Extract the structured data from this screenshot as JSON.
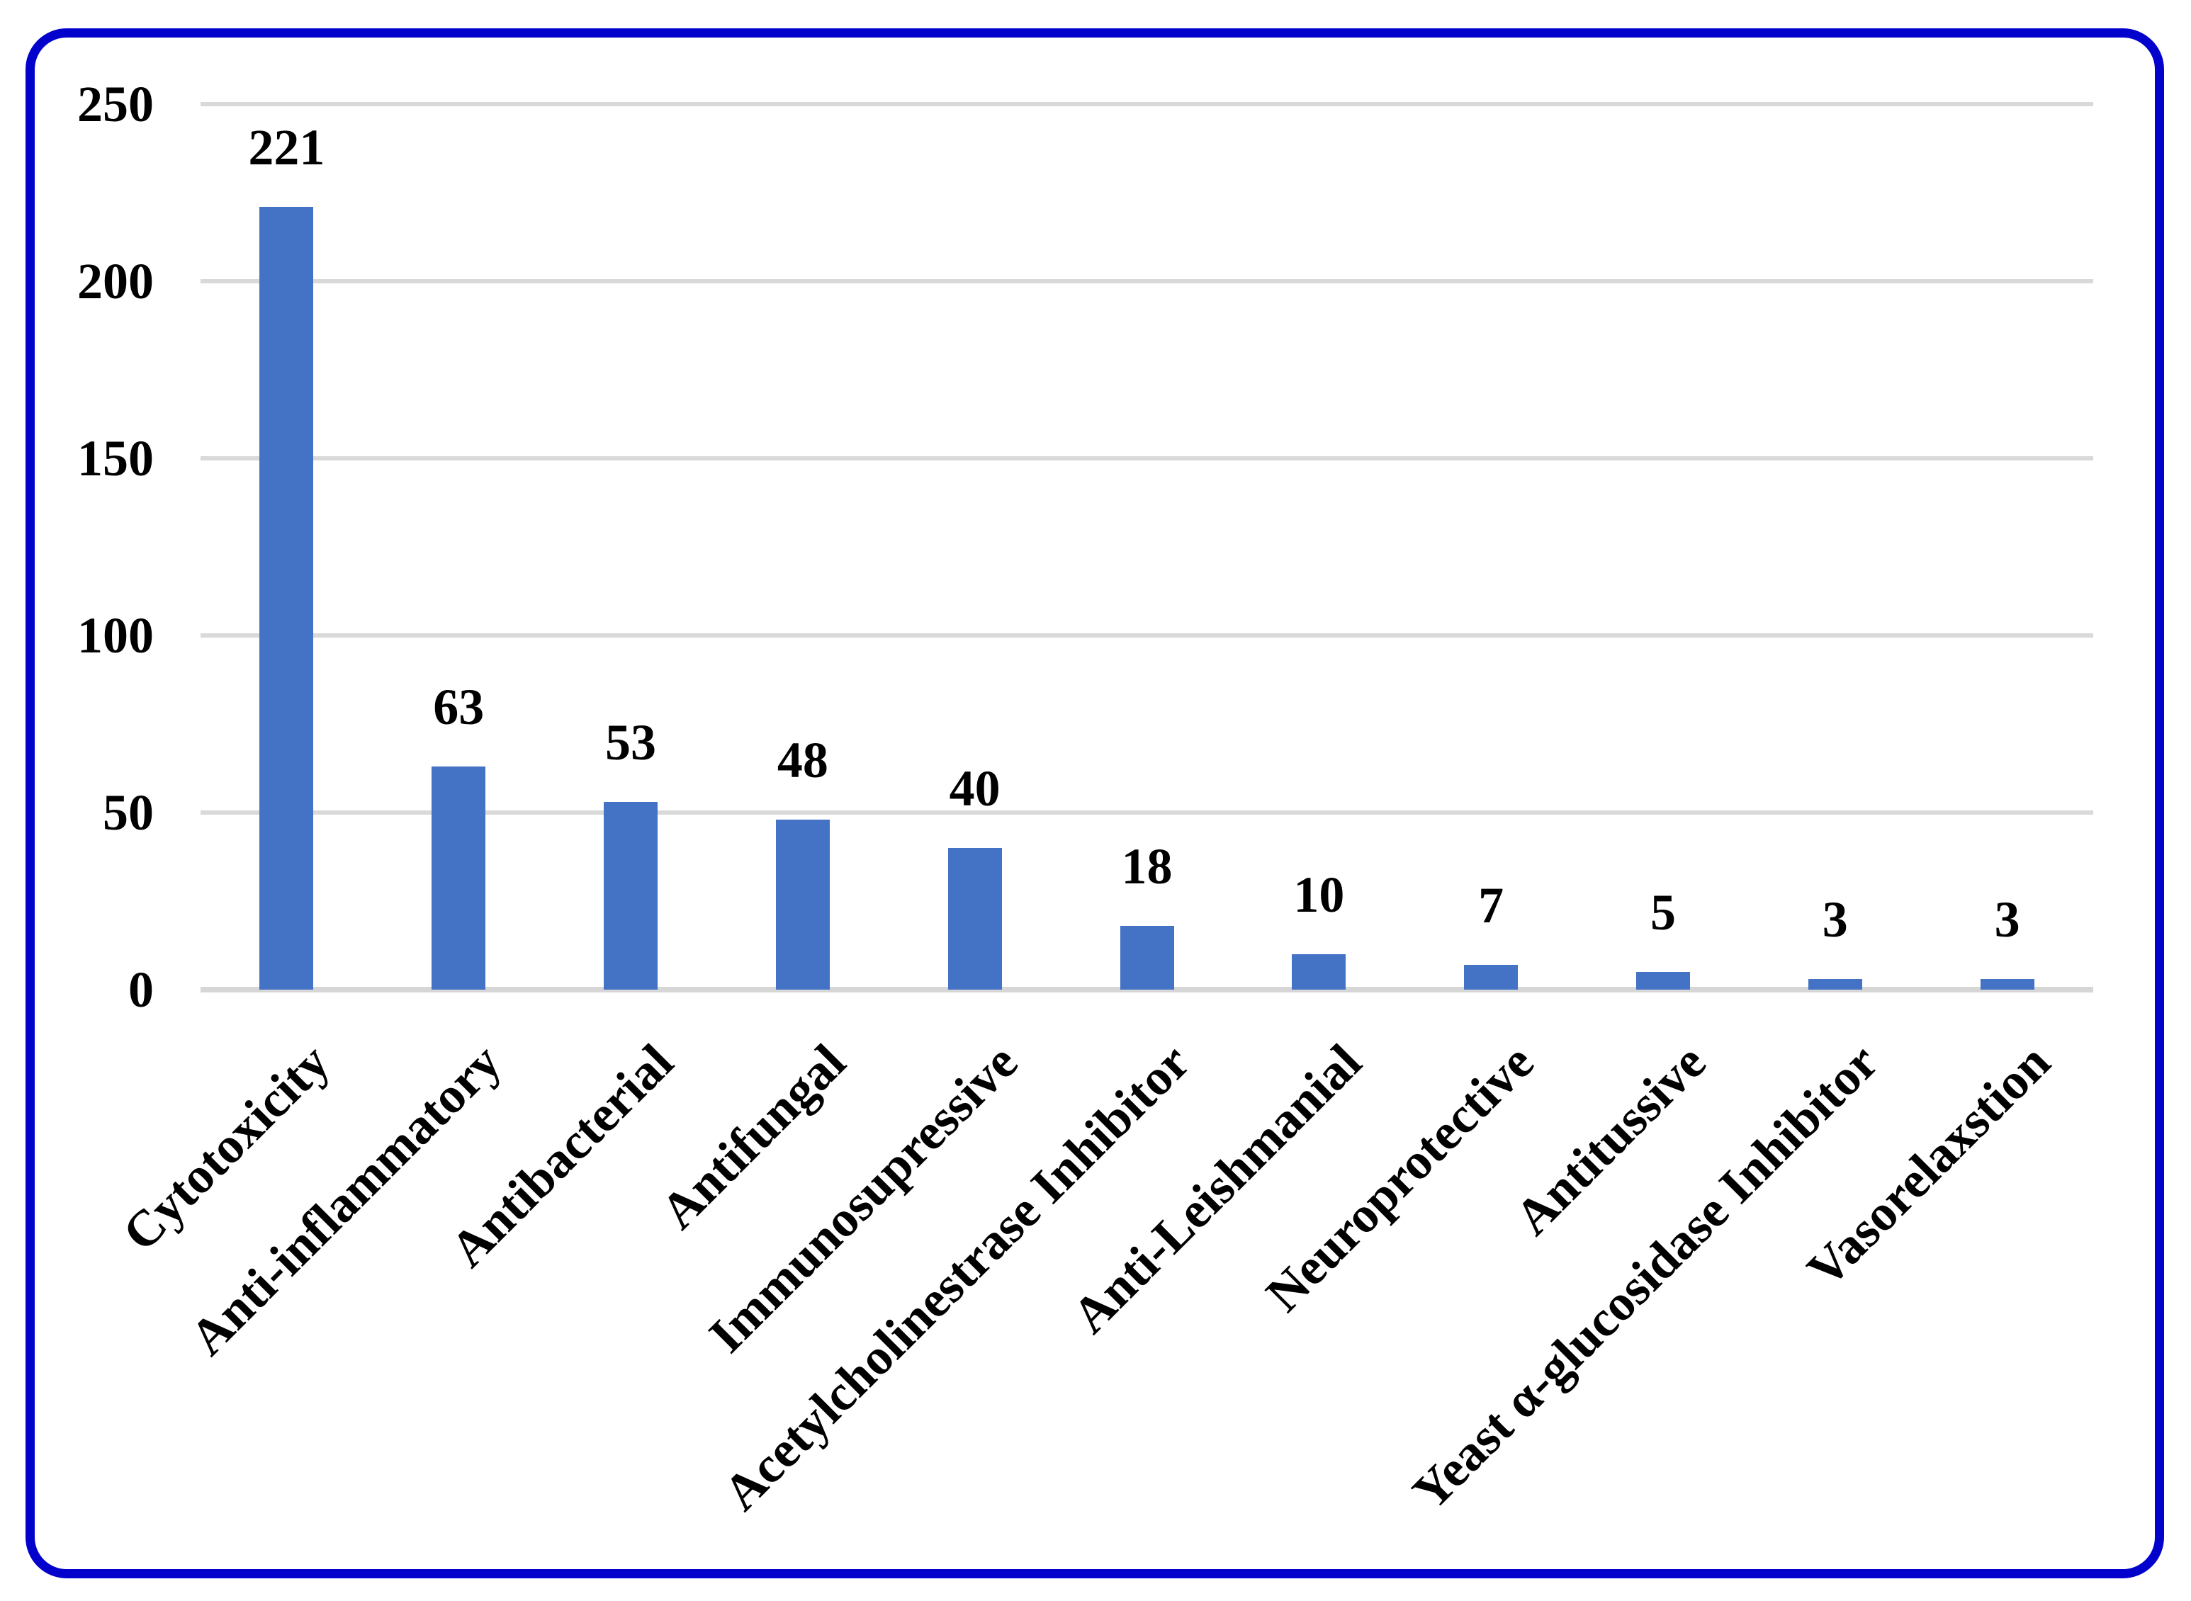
{
  "chart_data": {
    "type": "bar",
    "title": "",
    "xlabel": "",
    "ylabel": "",
    "categories": [
      "Cytotoxicity",
      "Anti-inflammatory",
      "Antibacterial",
      "Antifungal",
      "Immunosupressive",
      "Acetylcholinestrase Inhibitor",
      "Anti-Leishmanial",
      "Neuroprotective",
      "Antitussive",
      "Yeast α-glucosidase Inhibitor",
      "Vasorelaxstion"
    ],
    "values": [
      221,
      63,
      53,
      48,
      40,
      18,
      10,
      7,
      5,
      3,
      3
    ],
    "value_labels": [
      "221",
      "63",
      "53",
      "48",
      "40",
      "18",
      "10",
      "7",
      "5",
      "3",
      "3"
    ],
    "ylim": [
      0,
      250
    ],
    "yticks": [
      0,
      50,
      100,
      150,
      200,
      250
    ],
    "ytick_labels": [
      "0",
      "50",
      "100",
      "150",
      "200",
      "250"
    ],
    "grid": true,
    "legend": false,
    "x_label_rotation_deg": 45,
    "colors": {
      "bar": "#4472c4",
      "gridline": "#d9d9d9",
      "axis_line": "#d6d6d6",
      "text": "#000000",
      "frame_border": "#0202cc",
      "background": "#ffffff"
    }
  }
}
